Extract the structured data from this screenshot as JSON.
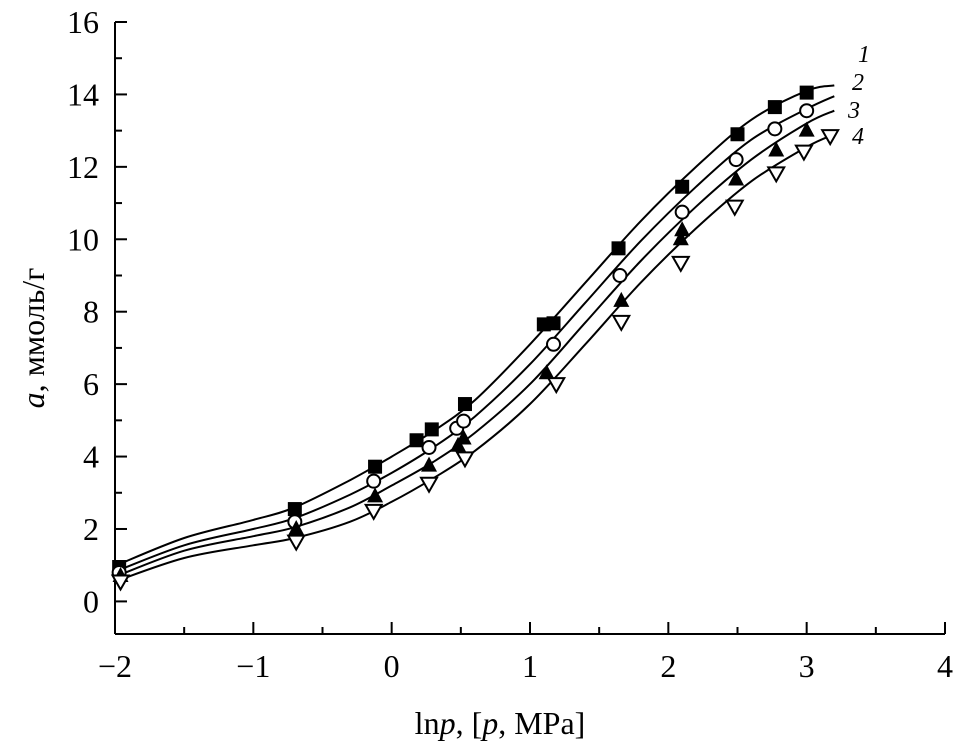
{
  "chart_data": {
    "type": "scatter",
    "xlabel": "ln p, [p, MPa]",
    "xlabel_parts": [
      "ln",
      "p",
      ", [",
      "p",
      ", MPa]"
    ],
    "ylabel_var": "a",
    "ylabel_unit": ", ммоль/г",
    "xlim": [
      -2,
      4
    ],
    "ylim": [
      -0.9,
      16
    ],
    "xticks": [
      -2,
      -1,
      0,
      1,
      2,
      3,
      4
    ],
    "yticks": [
      0,
      2,
      4,
      6,
      8,
      10,
      12,
      14,
      16
    ],
    "x_tick_labels": [
      "−2",
      "−1",
      "0",
      "1",
      "2",
      "3",
      "4"
    ],
    "y_tick_labels": [
      "0",
      "2",
      "4",
      "6",
      "8",
      "10",
      "12",
      "14",
      "16"
    ],
    "grid": false,
    "series": [
      {
        "name": "1",
        "marker": "filled-square",
        "x": [
          -1.97,
          -0.7,
          -0.12,
          0.18,
          0.29,
          0.53,
          1.1,
          1.17,
          1.64,
          2.1,
          2.5,
          2.77,
          3.0
        ],
        "y": [
          0.95,
          2.55,
          3.72,
          4.45,
          4.75,
          5.45,
          7.65,
          7.68,
          9.75,
          11.45,
          12.9,
          13.65,
          14.05
        ],
        "curve_x": [
          -2.0,
          -1.5,
          -1.0,
          -0.7,
          -0.3,
          0.0,
          0.3,
          0.6,
          1.0,
          1.4,
          1.8,
          2.2,
          2.6,
          3.0,
          3.2
        ],
        "curve_y": [
          0.98,
          1.75,
          2.25,
          2.6,
          3.35,
          4.0,
          4.7,
          5.55,
          7.1,
          8.8,
          10.5,
          12.0,
          13.3,
          14.1,
          14.25
        ]
      },
      {
        "name": "2",
        "marker": "open-circle",
        "x": [
          -1.97,
          -0.7,
          -0.13,
          0.27,
          0.47,
          0.52,
          1.17,
          1.65,
          2.1,
          2.49,
          2.77,
          3.0
        ],
        "y": [
          0.8,
          2.2,
          3.32,
          4.25,
          4.78,
          4.98,
          7.1,
          9.0,
          10.75,
          12.2,
          13.05,
          13.55
        ],
        "curve_x": [
          -2.0,
          -1.5,
          -1.0,
          -0.7,
          -0.3,
          0.0,
          0.3,
          0.6,
          1.0,
          1.4,
          1.8,
          2.2,
          2.6,
          3.0,
          3.2
        ],
        "curve_y": [
          0.82,
          1.55,
          2.0,
          2.3,
          2.95,
          3.55,
          4.25,
          5.1,
          6.55,
          8.25,
          9.95,
          11.45,
          12.75,
          13.6,
          13.95
        ]
      },
      {
        "name": "3",
        "marker": "filled-triangle",
        "x": [
          -1.96,
          -0.69,
          -0.12,
          0.27,
          0.48,
          0.52,
          1.12,
          1.66,
          2.09,
          2.1,
          2.49,
          2.78,
          3.0
        ],
        "y": [
          0.7,
          2.0,
          2.9,
          3.75,
          4.3,
          4.5,
          6.3,
          8.3,
          10.0,
          10.25,
          11.65,
          12.45,
          13.0
        ],
        "curve_x": [
          -2.0,
          -1.5,
          -1.0,
          -0.7,
          -0.3,
          0.0,
          0.3,
          0.6,
          1.0,
          1.4,
          1.8,
          2.2,
          2.6,
          3.0,
          3.2
        ],
        "curve_y": [
          0.68,
          1.4,
          1.8,
          2.05,
          2.6,
          3.2,
          3.85,
          4.65,
          6.0,
          7.7,
          9.4,
          10.9,
          12.2,
          13.2,
          13.55
        ]
      },
      {
        "name": "4",
        "marker": "open-down-triangle",
        "x": [
          -1.96,
          -0.69,
          -0.13,
          0.27,
          0.53,
          1.19,
          1.66,
          2.09,
          2.48,
          2.78,
          2.98,
          3.17
        ],
        "y": [
          0.55,
          1.65,
          2.5,
          3.25,
          3.95,
          6.0,
          7.72,
          9.35,
          10.9,
          11.82,
          12.42,
          12.85
        ],
        "curve_x": [
          -2.0,
          -1.5,
          -1.0,
          -0.7,
          -0.3,
          0.0,
          0.3,
          0.6,
          1.0,
          1.4,
          1.8,
          2.2,
          2.6,
          3.0,
          3.2
        ],
        "curve_y": [
          0.55,
          1.2,
          1.55,
          1.75,
          2.2,
          2.75,
          3.4,
          4.15,
          5.45,
          7.1,
          8.8,
          10.3,
          11.6,
          12.55,
          12.9
        ]
      }
    ]
  }
}
